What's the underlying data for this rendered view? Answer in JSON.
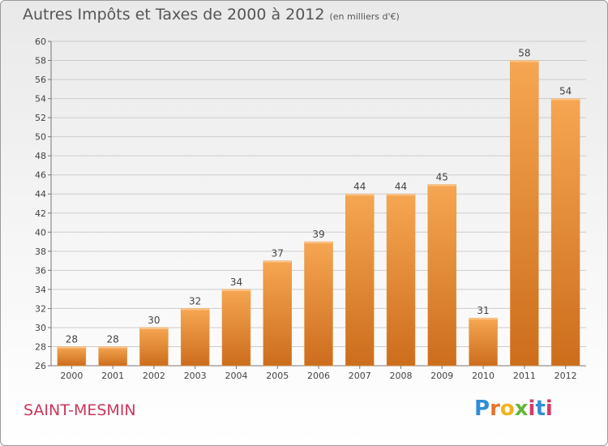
{
  "header": {
    "title": "Autres Impôts et Taxes de 2000 à 2012",
    "subtitle": "(en milliers d'€)"
  },
  "footer": {
    "commune": "SAINT-MESMIN",
    "logo_text": "Proxiti"
  },
  "colors": {
    "bar_top": "#f6a652",
    "bar_bottom": "#cc6d1c",
    "grid": "#cccccc",
    "commune": "#c8385a"
  },
  "chart_data": {
    "type": "bar",
    "title": "Autres Impôts et Taxes de 2000 à 2012",
    "subtitle": "(en milliers d'€)",
    "xlabel": "",
    "ylabel": "",
    "categories": [
      "2000",
      "2001",
      "2002",
      "2003",
      "2004",
      "2005",
      "2006",
      "2007",
      "2008",
      "2009",
      "2010",
      "2011",
      "2012"
    ],
    "values": [
      28,
      28,
      30,
      32,
      34,
      37,
      39,
      44,
      44,
      45,
      31,
      58,
      54
    ],
    "ylim": [
      26,
      60
    ],
    "yticks": [
      26,
      28,
      30,
      32,
      34,
      36,
      38,
      40,
      42,
      44,
      46,
      48,
      50,
      52,
      54,
      56,
      58,
      60
    ],
    "grid": true,
    "data_labels": true
  }
}
